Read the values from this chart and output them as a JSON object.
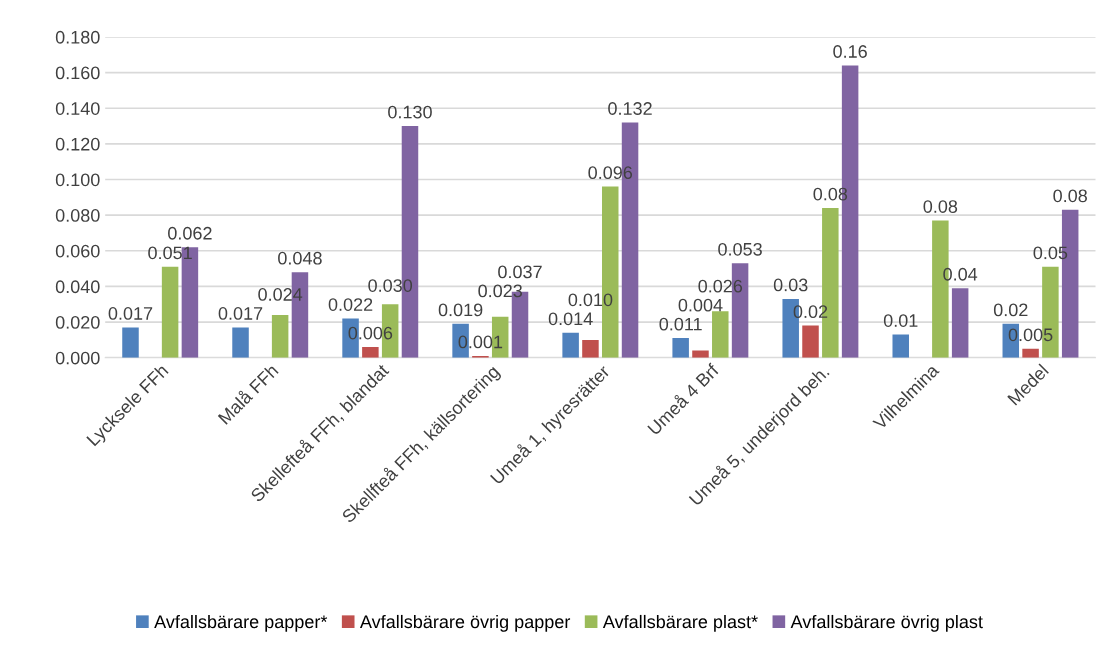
{
  "chart_data": {
    "type": "bar",
    "categories": [
      "Lycksele FFh",
      "Malå FFh",
      "Skellefteå FFh, blandat",
      "Skellfteå FFh, källsortering",
      "Umeå 1, hyresrätter",
      "Umeå 4 Brf",
      "Umeå 5, underjord beh.",
      "Vilhelmina",
      "Medel"
    ],
    "series": [
      {
        "name": "Avfallsbärare papper*",
        "color": "#4f81bd",
        "values": [
          0.017,
          0.017,
          0.022,
          0.019,
          0.014,
          0.011,
          0.033,
          0.013,
          0.019
        ],
        "value_labels": [
          "0.017",
          "0.017",
          "0.022",
          "0.019",
          "0.014",
          "0.011",
          "0.03",
          "0.01",
          "0.02"
        ]
      },
      {
        "name": "Avfallsbärare övrig papper",
        "color": "#c0504d",
        "values": [
          null,
          null,
          0.006,
          0.001,
          0.01,
          0.004,
          0.018,
          null,
          0.005
        ],
        "value_labels": [
          null,
          null,
          "0.006",
          "0.001",
          "0.010",
          "0.004",
          "0.02",
          null,
          "0.005"
        ]
      },
      {
        "name": "Avfallsbärare plast*",
        "color": "#9bbb59",
        "values": [
          0.051,
          0.024,
          0.03,
          0.023,
          0.096,
          0.026,
          0.084,
          0.077,
          0.051
        ],
        "value_labels": [
          "0.051",
          "0.024",
          "0.030",
          "0.023",
          "0.096",
          "0.026",
          "0.08",
          "0.08",
          "0.05"
        ]
      },
      {
        "name": "Avfallsbärare övrig plast",
        "color": "#8064a2",
        "values": [
          0.062,
          0.048,
          0.13,
          0.037,
          0.132,
          0.053,
          0.164,
          0.039,
          0.083
        ],
        "value_labels": [
          "0.062",
          "0.048",
          "0.130",
          "0.037",
          "0.132",
          "0.053",
          "0.16",
          "0.04",
          "0.08"
        ]
      }
    ],
    "ylim": [
      0,
      0.18
    ],
    "yticks": [
      {
        "value": 0,
        "label": "0.000"
      },
      {
        "value": 0.02,
        "label": "0.020"
      },
      {
        "value": 0.04,
        "label": "0.040"
      },
      {
        "value": 0.06,
        "label": "0.060"
      },
      {
        "value": 0.08,
        "label": "0.080"
      },
      {
        "value": 0.1,
        "label": "0.100"
      },
      {
        "value": 0.12,
        "label": "0.120"
      },
      {
        "value": 0.14,
        "label": "0.140"
      },
      {
        "value": 0.16,
        "label": "0.160"
      },
      {
        "value": 0.18,
        "label": "0.180"
      }
    ],
    "grid": "y",
    "legend": "bottom"
  }
}
